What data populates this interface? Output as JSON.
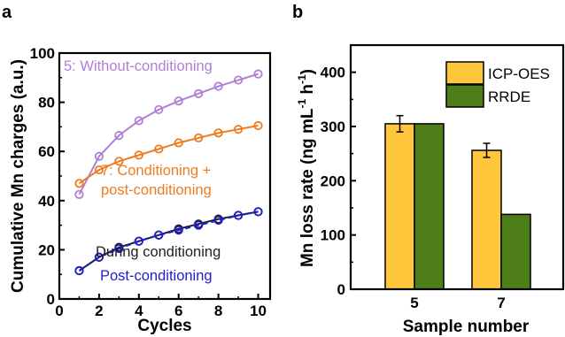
{
  "panels": {
    "a": "a",
    "b": "b"
  },
  "colors": {
    "without_conditioning": "#b07fd6",
    "conditioning_post": "#ee7c1e",
    "during_conditioning": "#1f1f1f",
    "post_conditioning": "#1f1fcc",
    "icp_oes": "#ffc83c",
    "rrde": "#4e7e17"
  },
  "chart_data": [
    {
      "type": "line",
      "xlabel": "Cycles",
      "ylabel": "Cumulative Mn charges (a.u.)",
      "xlim": [
        0,
        10.6
      ],
      "ylim": [
        0,
        100
      ],
      "xticks": [
        "0",
        "2",
        "4",
        "6",
        "8",
        "10"
      ],
      "yticks": [
        "0",
        "20",
        "40",
        "60",
        "80",
        "100"
      ],
      "x": [
        1,
        2,
        3,
        4,
        5,
        6,
        7,
        8,
        9,
        10
      ],
      "series": [
        {
          "name": "5: Without-conditioning",
          "color": "#b07fd6",
          "values": [
            42.5,
            58,
            66.5,
            72.5,
            77,
            80.5,
            83.5,
            86.5,
            89,
            91.5
          ]
        },
        {
          "name": "7: Conditioning + post-conditioning",
          "color": "#ee7c1e",
          "values": [
            47,
            52.5,
            56,
            58.5,
            61,
            63.5,
            65.5,
            67.5,
            69,
            70.5
          ]
        },
        {
          "name": "During conditioning",
          "color": "#1f1f1f",
          "values": [
            11.5,
            17,
            21,
            23.5,
            26,
            28.5,
            30.5,
            32.5,
            34,
            35.5
          ]
        },
        {
          "name": "Post-conditioning",
          "color": "#1f1fcc",
          "values": [
            11.5,
            17,
            20.5,
            23.5,
            26,
            28,
            30,
            32,
            34,
            35.5
          ]
        }
      ],
      "annotations": {
        "without": "5: Without-conditioning",
        "cond_line1": "7: Conditioning +",
        "cond_line2": "post-conditioning",
        "during": "During conditioning",
        "post": "Post-conditioning"
      }
    },
    {
      "type": "bar",
      "xlabel": "Sample number",
      "ylabel": "Mn loss rate (ng mL-1 h-1)",
      "ylabel_parts": {
        "main": "Mn loss rate (ng mL",
        "exp1": "-1",
        "mid": " h",
        "exp2": "-1",
        "end": ")"
      },
      "ylim": [
        0,
        450
      ],
      "yticks": [
        "0",
        "100",
        "200",
        "300",
        "400"
      ],
      "categories": [
        "5",
        "7"
      ],
      "series": [
        {
          "name": "ICP-OES",
          "color": "#ffc83c",
          "values": [
            305,
            256
          ],
          "errors": [
            15,
            13
          ]
        },
        {
          "name": "RRDE",
          "color": "#4e7e17",
          "values": [
            305,
            138
          ]
        }
      ],
      "legend": {
        "position": "top-right",
        "items": [
          "ICP-OES",
          "RRDE"
        ]
      }
    }
  ]
}
